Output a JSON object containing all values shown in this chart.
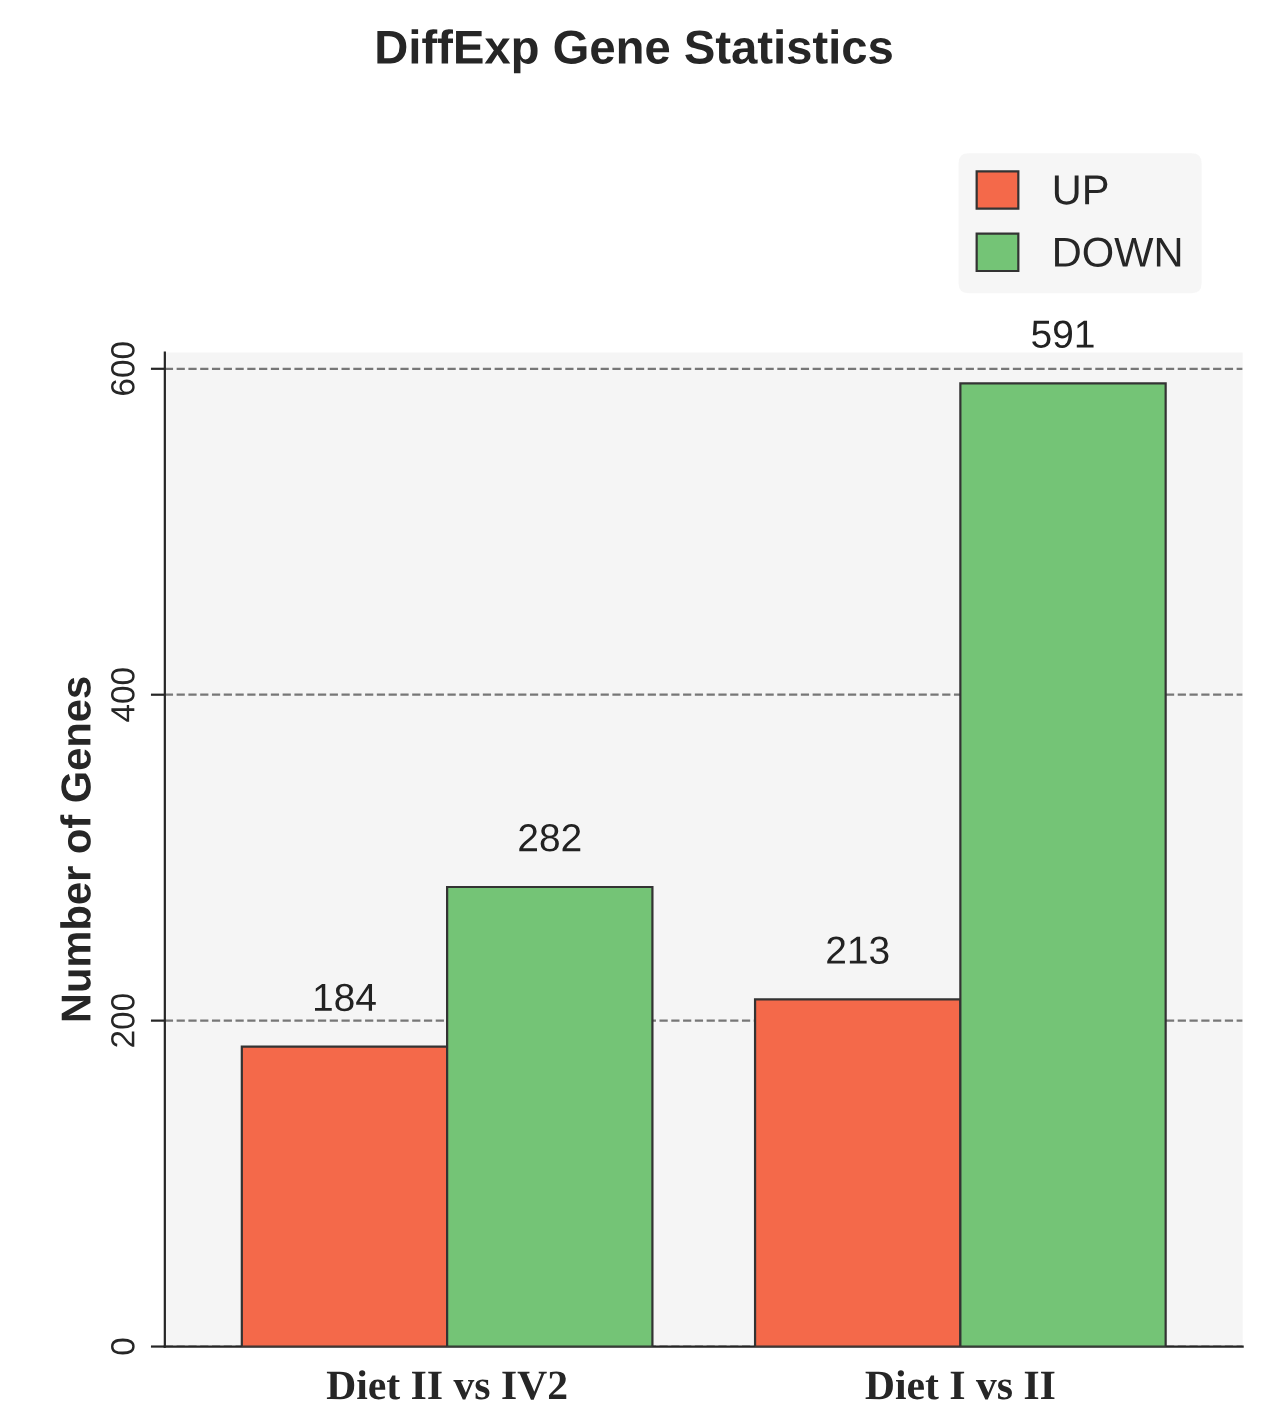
{
  "chart_data": {
    "type": "bar",
    "title": "DiffExp Gene Statistics",
    "ylabel": "Number of Genes",
    "categories": [
      "Diet II vs IV2",
      "Diet I vs II"
    ],
    "series": [
      {
        "name": "UP",
        "color": "#f4694a",
        "values": [
          184,
          213
        ]
      },
      {
        "name": "DOWN",
        "color": "#74c476",
        "values": [
          282,
          591
        ]
      }
    ],
    "ylim": [
      0,
      610
    ],
    "yticks": [
      0,
      200,
      400,
      600
    ],
    "grid": "y",
    "legend": "top right",
    "data_labels": true
  }
}
